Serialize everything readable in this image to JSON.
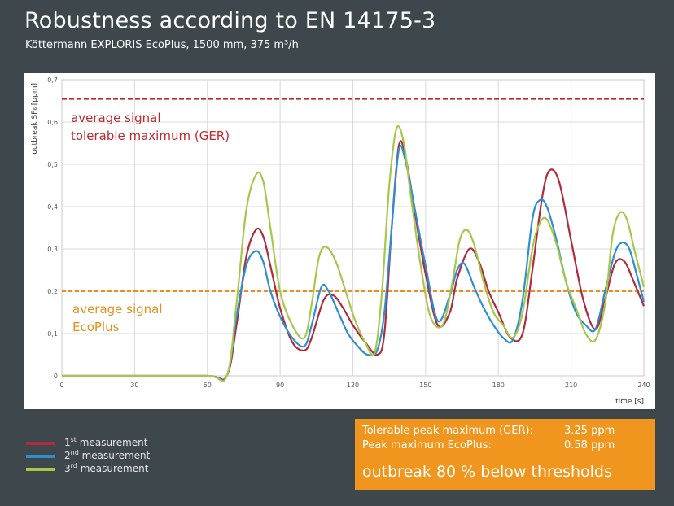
{
  "header": {
    "title": "Robustness according to EN 14175-3",
    "subtitle": "Köttermann EXPLORIS EcoPlus, 1500 mm, 375 m³/h"
  },
  "chart_data": {
    "type": "line",
    "xlabel": "time [s]",
    "ylabel": "outbreak SF₆ [ppm]",
    "xlim": [
      0,
      240
    ],
    "ylim": [
      0,
      0.7
    ],
    "x_ticks": [
      "0",
      "30",
      "60",
      "90",
      "120",
      "150",
      "180",
      "210",
      "240"
    ],
    "y_ticks": [
      "0",
      "0,1",
      "0,2",
      "0,3",
      "0,4",
      "0,5",
      "0,6",
      "0,7"
    ],
    "grid": true,
    "reference_lines": [
      {
        "value": 0.655,
        "label_line1": "average signal",
        "label_line2": "tolerable maximum (GER)",
        "color": "#c0282d"
      },
      {
        "value": 0.2,
        "label_line1": "average signal",
        "label_line2": "EcoPlus",
        "color": "#e8901e"
      }
    ],
    "series": [
      {
        "name": "1st measurement",
        "color": "#b02a3e",
        "x": [
          0,
          30,
          60,
          68,
          72,
          76,
          80,
          83,
          86,
          90,
          95,
          100,
          103,
          108,
          112,
          116,
          120,
          125,
          130,
          133,
          136,
          139,
          142,
          146,
          150,
          155,
          160,
          163,
          168,
          172,
          176,
          180,
          185,
          190,
          194,
          198,
          201,
          205,
          210,
          215,
          220,
          224,
          228,
          232,
          236,
          240
        ],
        "y": [
          0,
          0,
          0,
          0,
          0.12,
          0.28,
          0.345,
          0.33,
          0.26,
          0.16,
          0.08,
          0.06,
          0.09,
          0.18,
          0.19,
          0.16,
          0.12,
          0.08,
          0.05,
          0.1,
          0.35,
          0.545,
          0.51,
          0.37,
          0.24,
          0.12,
          0.15,
          0.23,
          0.3,
          0.27,
          0.2,
          0.15,
          0.09,
          0.1,
          0.25,
          0.42,
          0.485,
          0.46,
          0.32,
          0.18,
          0.11,
          0.18,
          0.265,
          0.27,
          0.22,
          0.165
        ]
      },
      {
        "name": "2nd measurement",
        "color": "#2e8ed0",
        "x": [
          0,
          30,
          60,
          68,
          72,
          76,
          80,
          83,
          86,
          90,
          95,
          100,
          103,
          107,
          110,
          114,
          118,
          122,
          126,
          130,
          133,
          136,
          139,
          142,
          146,
          150,
          155,
          160,
          163,
          166,
          170,
          174,
          178,
          182,
          186,
          190,
          194,
          197,
          200,
          204,
          208,
          212,
          216,
          220,
          224,
          228,
          231,
          234,
          237,
          240
        ],
        "y": [
          0,
          0,
          0,
          0,
          0.14,
          0.26,
          0.295,
          0.27,
          0.2,
          0.14,
          0.09,
          0.07,
          0.12,
          0.21,
          0.2,
          0.15,
          0.1,
          0.07,
          0.05,
          0.06,
          0.15,
          0.35,
          0.535,
          0.5,
          0.38,
          0.26,
          0.13,
          0.19,
          0.25,
          0.265,
          0.21,
          0.16,
          0.12,
          0.09,
          0.085,
          0.18,
          0.37,
          0.415,
          0.4,
          0.32,
          0.22,
          0.15,
          0.12,
          0.11,
          0.2,
          0.29,
          0.315,
          0.3,
          0.24,
          0.175
        ]
      },
      {
        "name": "3rd measurement",
        "color": "#a6c84a",
        "x": [
          0,
          30,
          60,
          68,
          72,
          76,
          80,
          83,
          86,
          90,
          95,
          100,
          103,
          106,
          109,
          113,
          117,
          121,
          125,
          129,
          132,
          135,
          138,
          141,
          144,
          148,
          152,
          157,
          161,
          164,
          167,
          170,
          174,
          178,
          182,
          186,
          190,
          194,
          197,
          200,
          204,
          208,
          212,
          216,
          220,
          224,
          227,
          230,
          233,
          236,
          240
        ],
        "y": [
          0,
          0,
          0,
          0,
          0.17,
          0.39,
          0.475,
          0.46,
          0.35,
          0.2,
          0.12,
          0.09,
          0.17,
          0.28,
          0.305,
          0.27,
          0.2,
          0.13,
          0.08,
          0.055,
          0.2,
          0.45,
          0.585,
          0.55,
          0.42,
          0.26,
          0.14,
          0.12,
          0.22,
          0.32,
          0.345,
          0.31,
          0.22,
          0.15,
          0.12,
          0.09,
          0.15,
          0.3,
          0.36,
          0.37,
          0.31,
          0.22,
          0.16,
          0.1,
          0.085,
          0.17,
          0.33,
          0.385,
          0.37,
          0.3,
          0.21
        ]
      }
    ]
  },
  "legend": {
    "items": [
      {
        "pre": "1",
        "sup": "st",
        "post": " measurement",
        "color": "#b02a3e"
      },
      {
        "pre": "2",
        "sup": "nd",
        "post": " measurement",
        "color": "#2e8ed0"
      },
      {
        "pre": "3",
        "sup": "rd",
        "post": " measurement",
        "color": "#a6c84a"
      }
    ]
  },
  "info_box": {
    "line1_label": "Tolerable peak maximum (GER):",
    "line1_value": "3.25 ppm",
    "line2_label": "Peak maximum EcoPlus:",
    "line2_value": "0.58 ppm",
    "conclusion": "outbreak 80 % below thresholds",
    "color": "#f0961e"
  }
}
